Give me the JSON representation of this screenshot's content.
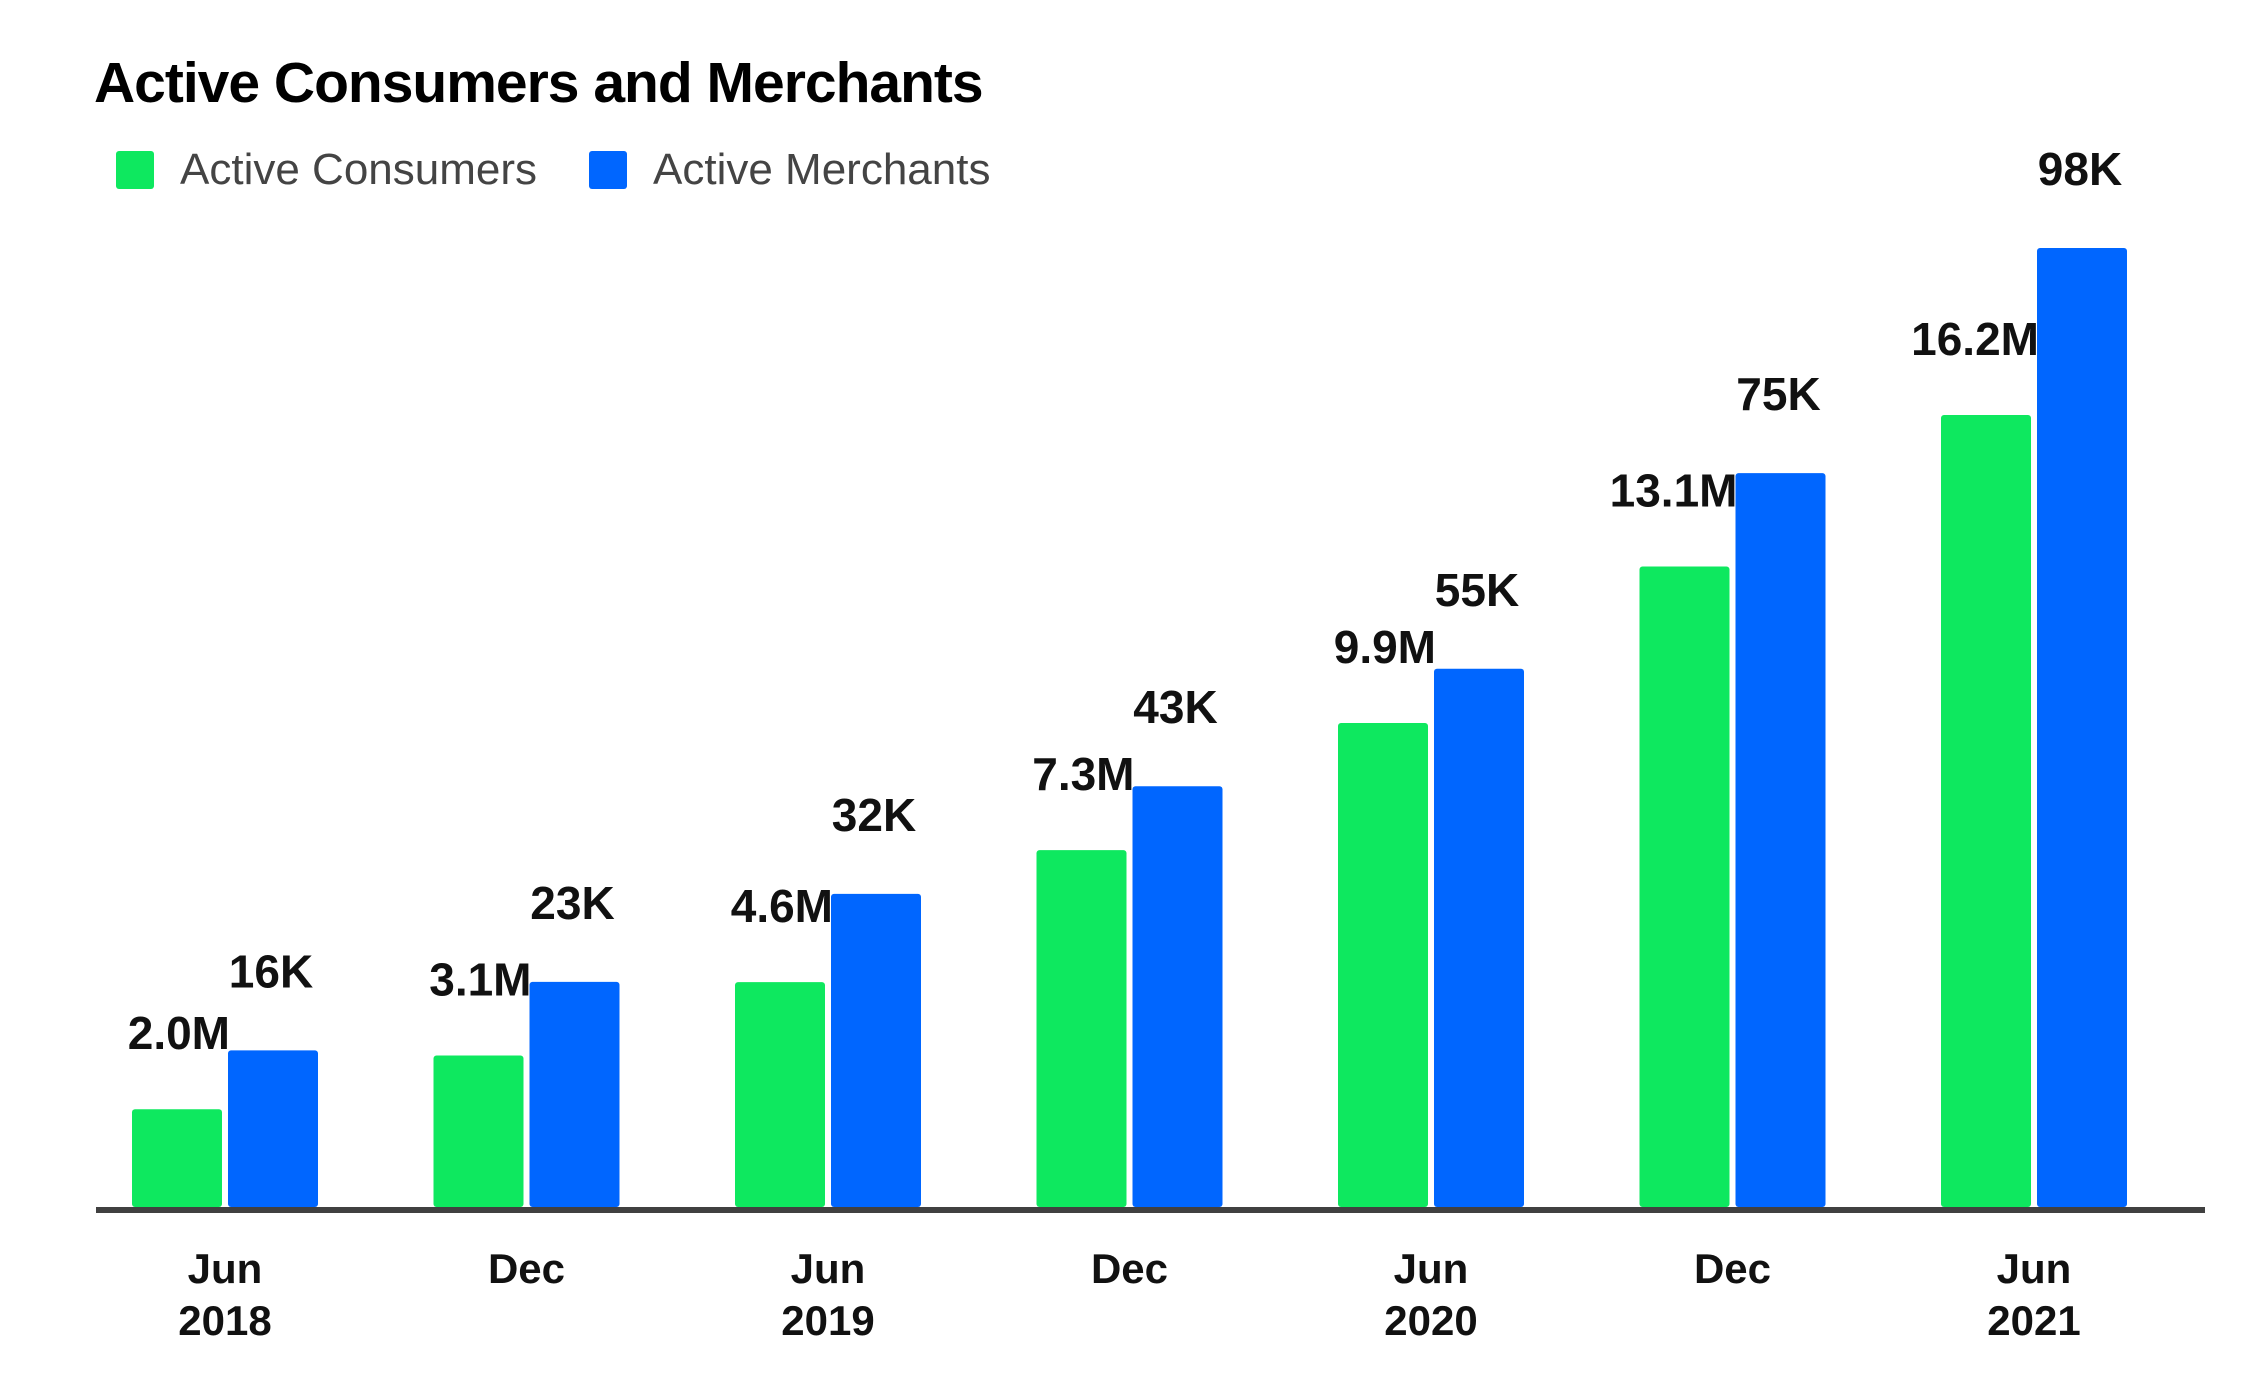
{
  "chart_data": {
    "type": "bar",
    "title": "Active Consumers and Merchants",
    "categories": [
      [
        "Jun",
        "2018"
      ],
      [
        "Dec"
      ],
      [
        "Jun",
        "2019"
      ],
      [
        "Dec"
      ],
      [
        "Jun",
        "2020"
      ],
      [
        "Dec"
      ],
      [
        "Jun",
        "2021"
      ]
    ],
    "series": [
      {
        "name": "Active Consumers",
        "color": "#0ee85f",
        "values": [
          2.0,
          3.1,
          4.6,
          7.3,
          9.9,
          13.1,
          16.2
        ],
        "labels": [
          "2.0M",
          "3.1M",
          "4.6M",
          "7.3M",
          "9.9M",
          "13.1M",
          "16.2M"
        ],
        "unit": "M"
      },
      {
        "name": "Active Merchants",
        "color": "#0066ff",
        "values": [
          16,
          23,
          32,
          43,
          55,
          75,
          98
        ],
        "labels": [
          "16K",
          "23K",
          "32K",
          "43K",
          "55K",
          "75K",
          "98K"
        ],
        "unit": "K"
      }
    ],
    "legend_position": "top-left",
    "grid": false
  }
}
